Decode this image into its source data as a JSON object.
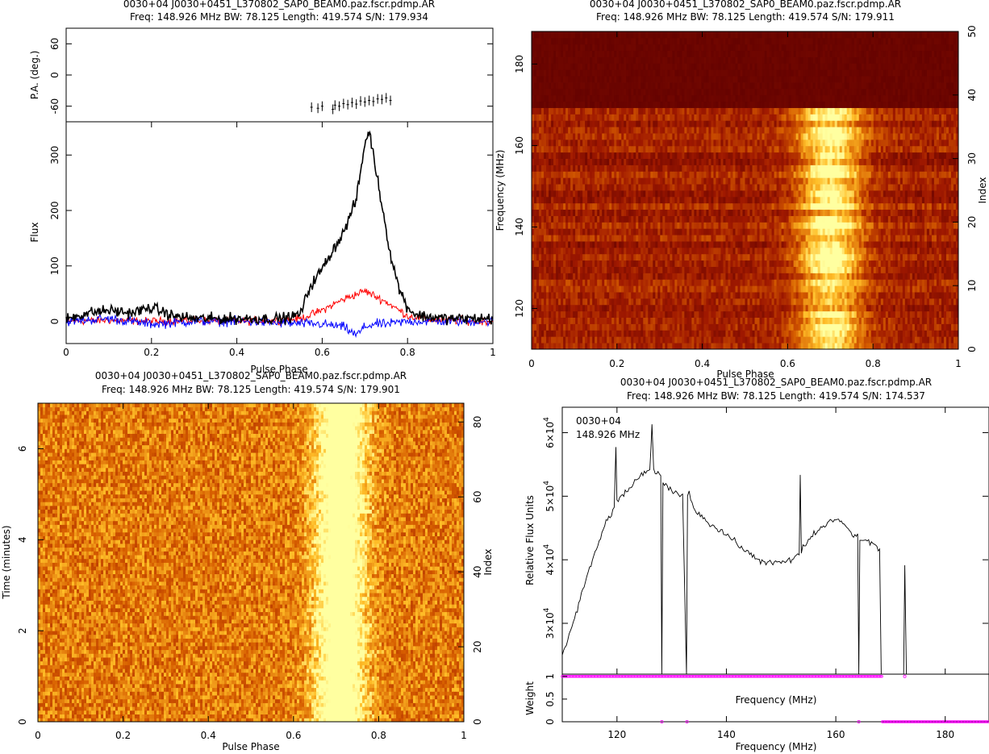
{
  "chart_data": [
    {
      "id": "profile",
      "type": "line",
      "title": "0030+04  J0030+0451_L370802_SAP0_BEAM0.paz.fscr.pdmp.AR",
      "subtitle": "Freq: 148.926 MHz BW: 78.125 Length: 419.574 S/N: 179.934",
      "xlabel": "Pulse Phase",
      "xlim": [
        0,
        1
      ],
      "x_ticks": [
        "0",
        "0.2",
        "0.4",
        "0.6",
        "0.8",
        "1"
      ],
      "pa_panel": {
        "ylabel": "P.A. (deg.)",
        "ylim": [
          -90,
          90
        ],
        "y_ticks": [
          "-60",
          "0",
          "60"
        ],
        "points": [
          [
            0.575,
            -62
          ],
          [
            0.59,
            -64
          ],
          [
            0.6,
            -60
          ],
          [
            0.625,
            -66
          ],
          [
            0.63,
            -58
          ],
          [
            0.64,
            -60
          ],
          [
            0.65,
            -55
          ],
          [
            0.66,
            -57
          ],
          [
            0.67,
            -53
          ],
          [
            0.68,
            -56
          ],
          [
            0.69,
            -50
          ],
          [
            0.7,
            -52
          ],
          [
            0.71,
            -49
          ],
          [
            0.72,
            -51
          ],
          [
            0.73,
            -46
          ],
          [
            0.74,
            -47
          ],
          [
            0.75,
            -44
          ],
          [
            0.76,
            -49
          ]
        ]
      },
      "flux_panel": {
        "ylabel": "Flux",
        "ylim": [
          -40,
          360
        ],
        "y_ticks": [
          "0",
          "100",
          "200",
          "300"
        ],
        "series": [
          {
            "color": "#000000",
            "x": [
              0,
              0.05,
              0.1,
              0.15,
              0.2,
              0.25,
              0.3,
              0.35,
              0.4,
              0.45,
              0.5,
              0.53,
              0.55,
              0.57,
              0.6,
              0.63,
              0.65,
              0.68,
              0.7,
              0.71,
              0.72,
              0.74,
              0.76,
              0.78,
              0.8,
              0.82,
              0.85,
              0.9,
              0.95,
              1.0
            ],
            "y": [
              5,
              15,
              20,
              15,
              25,
              10,
              5,
              5,
              5,
              5,
              5,
              8,
              15,
              60,
              95,
              135,
              160,
              220,
              320,
              345,
              300,
              210,
              120,
              60,
              25,
              12,
              8,
              5,
              5,
              5
            ]
          },
          {
            "color": "#ff0000",
            "x": [
              0,
              0.1,
              0.2,
              0.3,
              0.4,
              0.5,
              0.55,
              0.6,
              0.65,
              0.7,
              0.75,
              0.8,
              0.85,
              0.9,
              1.0
            ],
            "y": [
              0,
              2,
              0,
              2,
              0,
              2,
              5,
              20,
              40,
              55,
              35,
              10,
              3,
              2,
              0
            ]
          },
          {
            "color": "#0000ff",
            "x": [
              0,
              0.1,
              0.2,
              0.3,
              0.4,
              0.5,
              0.6,
              0.65,
              0.68,
              0.7,
              0.72,
              0.75,
              0.8,
              0.9,
              1.0
            ],
            "y": [
              0,
              5,
              -5,
              0,
              0,
              -3,
              -5,
              -10,
              -25,
              -10,
              -5,
              -5,
              0,
              0,
              0
            ]
          }
        ]
      }
    },
    {
      "id": "freq-phase",
      "type": "heatmap",
      "title": "0030+04  J0030+0451_L370802_SAP0_BEAM0.paz.fscr.pdmp.AR",
      "subtitle": "Freq: 148.926 MHz BW: 78.125 Length: 419.574 S/N: 179.911",
      "xlabel": "Pulse Phase",
      "ylabel": "Frequency (MHz)",
      "ylabel_right": "Index",
      "xlim": [
        0,
        1
      ],
      "ylim": [
        110,
        188
      ],
      "index_lim": [
        0,
        50
      ],
      "x_ticks": [
        "0",
        "0.2",
        "0.4",
        "0.6",
        "0.8",
        "1"
      ],
      "y_ticks": [
        "120",
        "140",
        "160",
        "180"
      ],
      "right_ticks": [
        "0",
        "10",
        "20",
        "30",
        "40",
        "50"
      ],
      "signal_frequency_range_mhz": [
        110,
        169
      ],
      "pulse_center_phase": 0.7
    },
    {
      "id": "time-phase",
      "type": "heatmap",
      "title": "0030+04  J0030+0451_L370802_SAP0_BEAM0.paz.fscr.pdmp.AR",
      "subtitle": "Freq: 148.926 MHz BW: 78.125 Length: 419.574 S/N: 179.901",
      "xlabel": "Pulse Phase",
      "ylabel": "Time (minutes)",
      "ylabel_right": "Index",
      "xlim": [
        0,
        1
      ],
      "ylim": [
        0,
        7
      ],
      "index_lim": [
        0,
        85
      ],
      "x_ticks": [
        "0",
        "0.2",
        "0.4",
        "0.6",
        "0.8",
        "1"
      ],
      "y_ticks": [
        "0",
        "2",
        "4",
        "6"
      ],
      "right_ticks": [
        "0",
        "20",
        "40",
        "60",
        "80"
      ],
      "pulse_center_phase": 0.71
    },
    {
      "id": "bandpass",
      "type": "line",
      "title": "0030+04  J0030+0451_L370802_SAP0_BEAM0.paz.fscr.pdmp.AR",
      "subtitle": "Freq: 148.926 MHz BW: 78.125 Length: 419.574 S/N: 174.537",
      "annotation_1": "0030+04",
      "annotation_2": "148.926 MHz",
      "xlabel": "Frequency (MHz)",
      "xlim": [
        110,
        188
      ],
      "x_ticks": [
        "120",
        "140",
        "160",
        "180"
      ],
      "flux_panel": {
        "ylabel": "Relative Flux Units",
        "ylim": [
          22000,
          64000
        ],
        "y_ticks": [
          {
            "mant": "3×10",
            "exp": "4",
            "v": 30000
          },
          {
            "mant": "4×10",
            "exp": "4",
            "v": 40000
          },
          {
            "mant": "5×10",
            "exp": "4",
            "v": 50000
          },
          {
            "mant": "6×10",
            "exp": "4",
            "v": 60000
          }
        ],
        "x": [
          110,
          112,
          114,
          116,
          118,
          119.5,
          119.8,
          120,
          122,
          124,
          126,
          126.4,
          126.7,
          127,
          128,
          128.2,
          128.4,
          130,
          132,
          132.7,
          132.9,
          133.2,
          134,
          136,
          138,
          140,
          142,
          144,
          146,
          148,
          150,
          152,
          153.3,
          153.5,
          153.7,
          154,
          156,
          158,
          160,
          161,
          162,
          163,
          164,
          164.2,
          164.4,
          165,
          166,
          167,
          168,
          168.3,
          168.5,
          172.4,
          172.6,
          172.9
        ],
        "y": [
          25000,
          30000,
          36000,
          41000,
          46000,
          48000,
          58000,
          49000,
          51000,
          53000,
          54000,
          61000,
          54000,
          54000,
          53000,
          22000,
          52000,
          51000,
          50000,
          22000,
          50000,
          51000,
          48000,
          46500,
          45000,
          44000,
          42500,
          41000,
          40000,
          39500,
          39500,
          40000,
          41000,
          53000,
          41000,
          42000,
          44000,
          45500,
          46500,
          46000,
          45000,
          44000,
          43500,
          22000,
          43500,
          43000,
          43000,
          42500,
          41500,
          22000,
          22000,
          22000,
          39000,
          22000
        ]
      },
      "weight_panel": {
        "ylabel": "Weight",
        "ylim": [
          0,
          1.05
        ],
        "y_ticks": [
          "0",
          "0.5",
          "1"
        ],
        "center_label": "Frequency (MHz)",
        "ones_range_mhz": [
          110,
          168.5
        ],
        "zeros_range_mhz": [
          168.5,
          188
        ],
        "zero_points_mhz": [
          128.2,
          132.8,
          164.2
        ],
        "one_points_mhz": [
          172.6
        ]
      }
    }
  ],
  "colors": {
    "flux_total": "#000000",
    "linear_pol": "#ff0000",
    "circular_pol": "#0000ff",
    "weights": "#ff00ff",
    "heat_low": "#6a0000",
    "heat_high": "#ffffa0"
  }
}
